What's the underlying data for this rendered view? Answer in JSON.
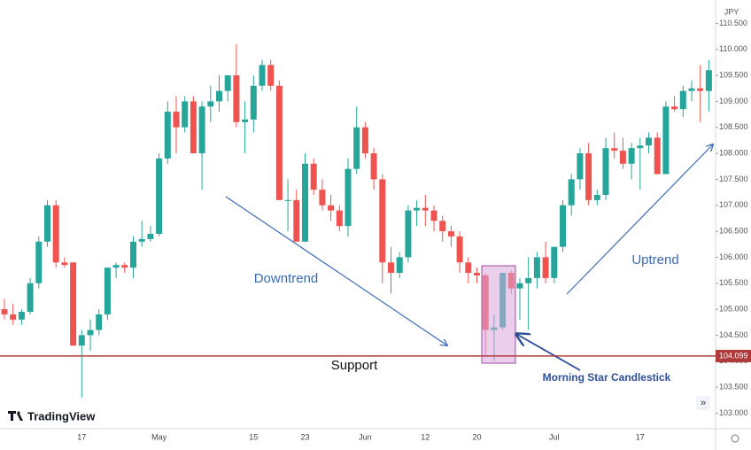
{
  "chart_data": {
    "type": "candlestick",
    "currency": "JPY",
    "brand": "TradingView",
    "scroll_button": "»",
    "up_color": "#26a69a",
    "down_color": "#ef5350",
    "support": {
      "value": 104.099,
      "label": "104.099",
      "color": "#b03a3a"
    },
    "annotations": {
      "downtrend": "Downtrend",
      "uptrend": "Uptrend",
      "support": "Support",
      "pattern": "Morning Star Candlestick"
    },
    "ylim": [
      102.7,
      110.95
    ],
    "yticks": [
      {
        "value": 103,
        "label": "103.000"
      },
      {
        "value": 103.5,
        "label": "103.500"
      },
      {
        "value": 104,
        "label": "104.000"
      },
      {
        "value": 104.5,
        "label": "104.500"
      },
      {
        "value": 105,
        "label": "105.000"
      },
      {
        "value": 105.5,
        "label": "105.500"
      },
      {
        "value": 106,
        "label": "106.000"
      },
      {
        "value": 106.5,
        "label": "106.500"
      },
      {
        "value": 107,
        "label": "107.000"
      },
      {
        "value": 107.5,
        "label": "107.500"
      },
      {
        "value": 108,
        "label": "108.000"
      },
      {
        "value": 108.5,
        "label": "108.500"
      },
      {
        "value": 109,
        "label": "109.000"
      },
      {
        "value": 109.5,
        "label": "109.500"
      },
      {
        "value": 110,
        "label": "110.000"
      },
      {
        "value": 110.5,
        "label": "110.500"
      }
    ],
    "categories": [
      null,
      null,
      null,
      null,
      null,
      null,
      null,
      null,
      null,
      "17",
      null,
      null,
      null,
      null,
      null,
      null,
      null,
      null,
      "May",
      null,
      null,
      null,
      null,
      null,
      null,
      null,
      null,
      null,
      null,
      "15",
      null,
      null,
      null,
      null,
      null,
      "23",
      null,
      null,
      null,
      null,
      null,
      null,
      "Jun",
      null,
      null,
      null,
      null,
      null,
      null,
      "12",
      null,
      null,
      null,
      null,
      null,
      "20",
      null,
      null,
      null,
      null,
      null,
      null,
      null,
      null,
      "Jul",
      null,
      null,
      null,
      null,
      null,
      null,
      null,
      null,
      null,
      "17",
      null,
      null,
      null,
      null,
      null,
      null,
      null,
      null
    ],
    "values": [
      [
        105.0,
        105.2,
        104.8,
        104.9
      ],
      [
        104.9,
        105.1,
        104.7,
        104.8
      ],
      [
        104.8,
        105.0,
        104.7,
        104.95
      ],
      [
        104.95,
        105.6,
        104.9,
        105.5
      ],
      [
        105.5,
        106.4,
        105.4,
        106.3
      ],
      [
        106.3,
        107.1,
        106.2,
        107.0
      ],
      [
        107.0,
        107.1,
        105.8,
        105.9
      ],
      [
        105.9,
        106.0,
        105.8,
        105.85
      ],
      [
        105.9,
        105.9,
        104.3,
        104.3
      ],
      [
        104.3,
        104.6,
        103.3,
        104.5
      ],
      [
        104.5,
        104.8,
        104.2,
        104.6
      ],
      [
        104.6,
        105.0,
        104.5,
        104.9
      ],
      [
        104.9,
        105.8,
        104.8,
        105.8
      ],
      [
        105.8,
        105.9,
        105.6,
        105.85
      ],
      [
        105.85,
        105.9,
        105.7,
        105.8
      ],
      [
        105.8,
        106.4,
        105.6,
        106.3
      ],
      [
        106.3,
        106.7,
        106.2,
        106.35
      ],
      [
        106.35,
        106.6,
        106.3,
        106.45
      ],
      [
        106.45,
        108.0,
        106.4,
        107.9
      ],
      [
        107.9,
        109.0,
        107.8,
        108.8
      ],
      [
        108.8,
        109.1,
        108.0,
        108.5
      ],
      [
        108.5,
        109.1,
        108.4,
        109.0
      ],
      [
        109.0,
        109.1,
        108.0,
        108.0
      ],
      [
        108.0,
        109.0,
        107.3,
        108.9
      ],
      [
        108.9,
        109.3,
        108.6,
        109.0
      ],
      [
        109.0,
        109.5,
        108.8,
        109.2
      ],
      [
        109.2,
        109.5,
        109.0,
        109.5
      ],
      [
        109.5,
        110.1,
        108.5,
        108.6
      ],
      [
        108.6,
        109.0,
        108.0,
        108.65
      ],
      [
        108.65,
        109.5,
        108.4,
        109.3
      ],
      [
        109.3,
        109.8,
        109.2,
        109.7
      ],
      [
        109.7,
        109.8,
        109.2,
        109.3
      ],
      [
        109.3,
        109.4,
        107.1,
        107.1
      ],
      [
        107.1,
        107.5,
        106.5,
        107.1
      ],
      [
        107.1,
        107.3,
        106.3,
        106.3
      ],
      [
        106.3,
        108.0,
        106.3,
        107.8
      ],
      [
        107.8,
        107.9,
        107.2,
        107.3
      ],
      [
        107.3,
        107.5,
        106.9,
        107.0
      ],
      [
        107.0,
        107.2,
        106.7,
        106.9
      ],
      [
        106.9,
        107.0,
        106.5,
        106.6
      ],
      [
        106.6,
        107.9,
        106.4,
        107.7
      ],
      [
        107.7,
        108.9,
        107.6,
        108.5
      ],
      [
        108.5,
        108.6,
        107.9,
        108.0
      ],
      [
        108.0,
        108.1,
        107.3,
        107.5
      ],
      [
        107.5,
        107.6,
        105.5,
        105.9
      ],
      [
        105.9,
        106.2,
        105.3,
        105.7
      ],
      [
        105.7,
        106.1,
        105.6,
        106.0
      ],
      [
        106.0,
        107.0,
        105.9,
        106.9
      ],
      [
        106.9,
        107.1,
        106.6,
        106.95
      ],
      [
        106.95,
        107.2,
        106.6,
        106.9
      ],
      [
        106.9,
        107.0,
        106.5,
        106.7
      ],
      [
        106.7,
        106.8,
        106.3,
        106.5
      ],
      [
        106.5,
        106.6,
        106.2,
        106.4
      ],
      [
        106.4,
        106.5,
        105.7,
        105.9
      ],
      [
        105.9,
        106.0,
        105.5,
        105.7
      ],
      [
        105.7,
        105.8,
        105.5,
        105.65
      ],
      [
        105.65,
        105.7,
        104.1,
        104.6
      ],
      [
        104.6,
        104.9,
        104.0,
        104.65
      ],
      [
        104.65,
        105.7,
        104.6,
        105.7
      ],
      [
        105.7,
        105.75,
        105.3,
        105.4
      ],
      [
        105.4,
        105.6,
        104.8,
        105.5
      ],
      [
        105.5,
        106.0,
        104.6,
        105.6
      ],
      [
        105.6,
        106.1,
        105.4,
        106.0
      ],
      [
        106.0,
        106.3,
        105.5,
        105.6
      ],
      [
        105.6,
        106.2,
        105.5,
        106.2
      ],
      [
        106.2,
        107.1,
        106.1,
        107.0
      ],
      [
        107.0,
        107.6,
        106.8,
        107.5
      ],
      [
        107.5,
        108.1,
        107.3,
        108.0
      ],
      [
        108.0,
        108.2,
        107.0,
        107.1
      ],
      [
        107.1,
        107.3,
        107.0,
        107.2
      ],
      [
        107.2,
        108.3,
        107.1,
        108.1
      ],
      [
        108.1,
        108.4,
        107.9,
        108.05
      ],
      [
        108.05,
        108.3,
        107.7,
        107.8
      ],
      [
        107.8,
        108.2,
        107.5,
        108.1
      ],
      [
        108.1,
        108.3,
        107.3,
        108.15
      ],
      [
        108.15,
        108.4,
        108.0,
        108.3
      ],
      [
        108.3,
        108.4,
        107.6,
        107.6
      ],
      [
        107.6,
        109.0,
        107.6,
        108.9
      ],
      [
        108.9,
        109.1,
        108.8,
        108.85
      ],
      [
        108.85,
        109.3,
        108.7,
        109.2
      ],
      [
        109.2,
        109.4,
        109.0,
        109.25
      ],
      [
        109.25,
        109.7,
        108.6,
        109.2
      ],
      [
        109.2,
        109.8,
        108.8,
        109.6
      ]
    ]
  }
}
